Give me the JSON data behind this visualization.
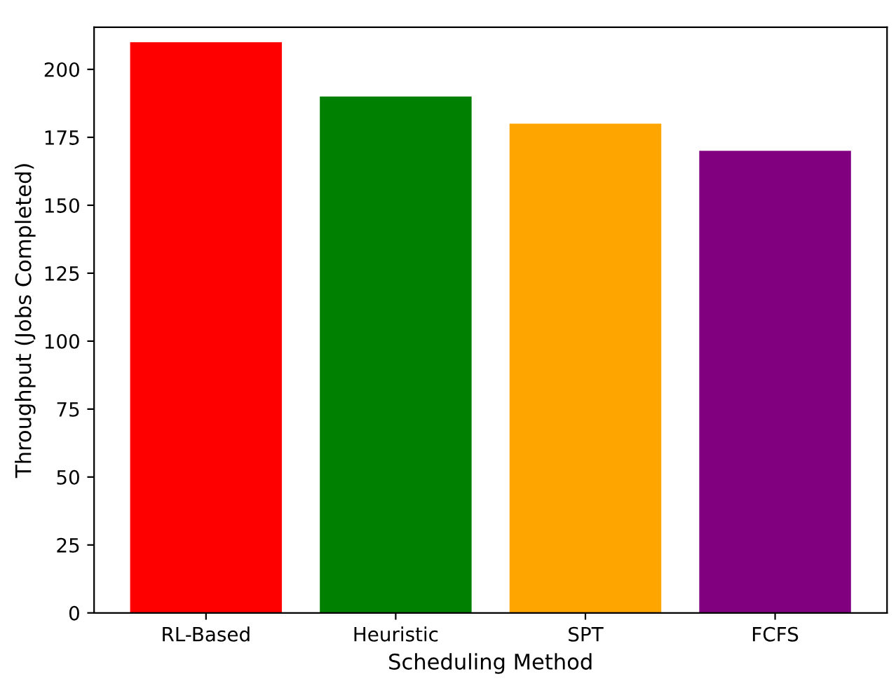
{
  "chart_data": {
    "type": "bar",
    "xlabel": "Scheduling Method",
    "ylabel": "Throughput (Jobs Completed)",
    "categories": [
      "RL-Based",
      "Heuristic",
      "SPT",
      "FCFS"
    ],
    "values": [
      210,
      190,
      180,
      170
    ],
    "colors": [
      "#ff0000",
      "#008000",
      "#ffa500",
      "#800080"
    ],
    "ylim": [
      0,
      215.5
    ],
    "yticks": [
      0,
      25,
      50,
      75,
      100,
      125,
      150,
      175,
      200
    ],
    "grid": false
  }
}
